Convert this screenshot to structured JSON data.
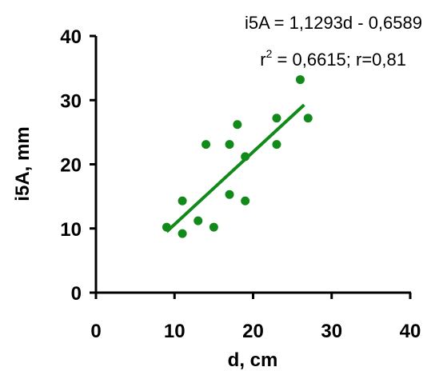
{
  "chart_data": {
    "type": "scatter",
    "title": "",
    "xlabel": "d, cm",
    "ylabel": "i5A, mm",
    "xlim": [
      0,
      40
    ],
    "ylim": [
      0,
      40
    ],
    "x_ticks": [
      0,
      10,
      20,
      30,
      40
    ],
    "y_ticks": [
      0,
      10,
      20,
      30,
      40
    ],
    "grid": false,
    "point_color": "#118a1a",
    "line_color": "#118a1a",
    "points": [
      {
        "x": 9,
        "y": 10.2
      },
      {
        "x": 11,
        "y": 9.2
      },
      {
        "x": 11,
        "y": 14.3
      },
      {
        "x": 13,
        "y": 11.2
      },
      {
        "x": 14,
        "y": 23.1
      },
      {
        "x": 15,
        "y": 10.2
      },
      {
        "x": 17,
        "y": 15.3
      },
      {
        "x": 17,
        "y": 23.1
      },
      {
        "x": 18,
        "y": 26.2
      },
      {
        "x": 19,
        "y": 21.2
      },
      {
        "x": 19,
        "y": 14.3
      },
      {
        "x": 23,
        "y": 27.2
      },
      {
        "x": 23,
        "y": 23.1
      },
      {
        "x": 26,
        "y": 33.2
      },
      {
        "x": 27,
        "y": 27.2
      }
    ],
    "trendline": {
      "slope": 1.1293,
      "intercept": -0.6589,
      "x_range": [
        9,
        26.5
      ]
    },
    "annotations": {
      "equation": "i5A = 1,1293d - 0,6589",
      "r2_prefix": "r",
      "r2_superscript": "2",
      "r2_rest": " = 0,6615; r=0,81"
    }
  }
}
